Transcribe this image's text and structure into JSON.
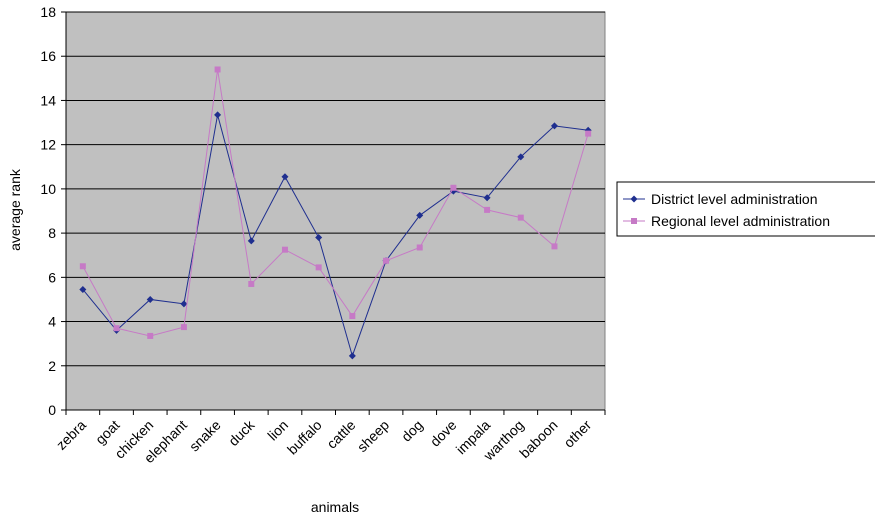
{
  "chart_data": {
    "type": "line",
    "title": "",
    "xlabel": "animals",
    "ylabel": "average rank",
    "categories": [
      "zebra",
      "goat",
      "chicken",
      "elephant",
      "snake",
      "duck",
      "lion",
      "buffalo",
      "cattle",
      "sheep",
      "dog",
      "dove",
      "impala",
      "warthog",
      "baboon",
      "other"
    ],
    "ylim": [
      0,
      18
    ],
    "yticks": [
      "0",
      "2",
      "4",
      "6",
      "8",
      "10",
      "12",
      "14",
      "16",
      "18"
    ],
    "grid": true,
    "legend_position": "right",
    "plot_background": "#c0c0c0",
    "series": [
      {
        "name": "District level administration",
        "color": "#1f2f8f",
        "marker": "diamond",
        "values": [
          5.45,
          3.6,
          5.0,
          4.8,
          13.35,
          7.65,
          10.55,
          7.8,
          2.45,
          6.75,
          8.8,
          9.9,
          9.6,
          11.45,
          12.85,
          12.65
        ]
      },
      {
        "name": "Regional level administration",
        "color": "#c67ac6",
        "marker": "square",
        "values": [
          6.5,
          3.7,
          3.35,
          3.75,
          15.4,
          5.7,
          7.25,
          6.45,
          4.25,
          6.75,
          7.35,
          10.05,
          9.05,
          8.7,
          7.4,
          12.5
        ]
      }
    ]
  }
}
